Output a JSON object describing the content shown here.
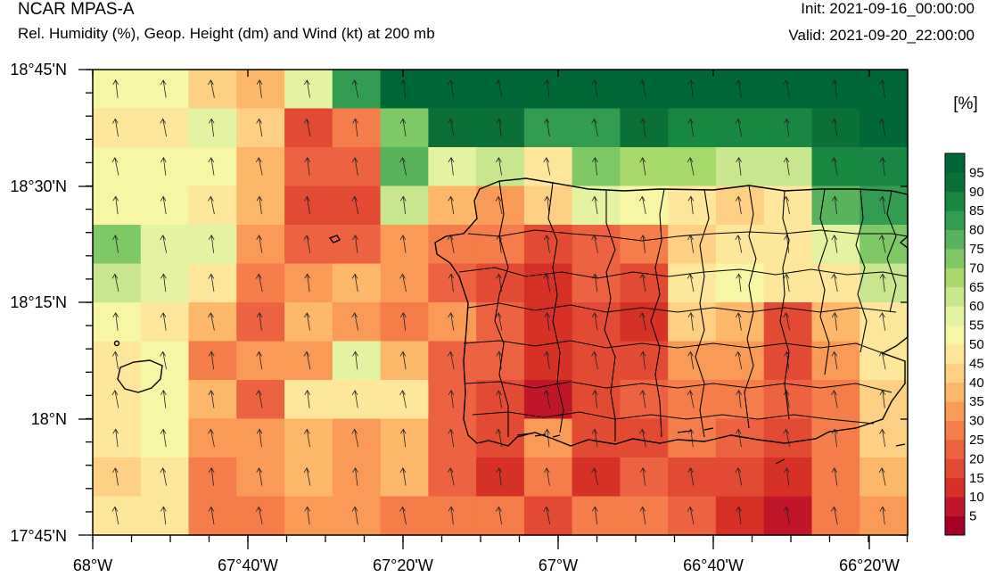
{
  "header": {
    "model": "NCAR MPAS-A",
    "field": "Rel. Humidity (%), Geop. Height (dm) and Wind (kt) at 200 mb",
    "init": "Init: 2021-09-16_00:00:00",
    "valid": "Valid: 2021-09-20_22:00:00"
  },
  "axes": {
    "y_labels": [
      "18°45'N",
      "18°30'N",
      "18°15'N",
      "18°N",
      "17°45'N"
    ],
    "x_labels": [
      "68°W",
      "67°40'W",
      "67°20'W",
      "67°W",
      "66°40'W",
      "66°20'W"
    ]
  },
  "colorbar": {
    "unit": "[%]",
    "levels": [
      "5",
      "10",
      "15",
      "20",
      "25",
      "30",
      "35",
      "40",
      "45",
      "50",
      "55",
      "60",
      "65",
      "70",
      "75",
      "80",
      "85",
      "90",
      "95"
    ],
    "colors": [
      "#a50026",
      "#c1152a",
      "#d73027",
      "#e34a33",
      "#ed6241",
      "#f47d4a",
      "#f99b56",
      "#fcb768",
      "#fdd083",
      "#fee79b",
      "#f7f6a5",
      "#e4f3a1",
      "#c8e68d",
      "#a6d96a",
      "#7fc866",
      "#58b35c",
      "#329d51",
      "#188741",
      "#0a7037",
      "#006837"
    ]
  },
  "map_data": {
    "lon_range": [
      -68.0,
      -66.25
    ],
    "lat_range": [
      17.75,
      18.75
    ],
    "grid_rows_top_to_bottom": [
      [
        10,
        10,
        8,
        7,
        11,
        16,
        19,
        19,
        19,
        19,
        19,
        19,
        19,
        19,
        19,
        19,
        19
      ],
      [
        9,
        9,
        11,
        8,
        3,
        5,
        14,
        18,
        18,
        16,
        16,
        18,
        17,
        17,
        17,
        18,
        19
      ],
      [
        10,
        10,
        10,
        7,
        4,
        4,
        15,
        11,
        12,
        9,
        14,
        13,
        13,
        12,
        12,
        17,
        17
      ],
      [
        10,
        10,
        9,
        7,
        3,
        3,
        12,
        7,
        6,
        8,
        11,
        10,
        9,
        8,
        9,
        15,
        16
      ],
      [
        14,
        11,
        11,
        6,
        4,
        4,
        6,
        5,
        5,
        3,
        4,
        5,
        8,
        9,
        9,
        11,
        14
      ],
      [
        12,
        11,
        9,
        5,
        6,
        7,
        6,
        4,
        3,
        2,
        4,
        3,
        9,
        10,
        9,
        9,
        12
      ],
      [
        10,
        9,
        7,
        4,
        7,
        6,
        5,
        6,
        4,
        2,
        3,
        2,
        8,
        7,
        3,
        7,
        9
      ],
      [
        9,
        10,
        5,
        6,
        6,
        11,
        7,
        4,
        4,
        2,
        3,
        3,
        6,
        6,
        3,
        6,
        9
      ],
      [
        9,
        10,
        7,
        4,
        9,
        9,
        9,
        4,
        3,
        1,
        3,
        4,
        5,
        5,
        4,
        5,
        8
      ],
      [
        9,
        10,
        6,
        6,
        7,
        6,
        7,
        4,
        3,
        6,
        3,
        3,
        5,
        4,
        3,
        5,
        8
      ],
      [
        8,
        9,
        5,
        6,
        7,
        6,
        7,
        4,
        2,
        5,
        2,
        4,
        3,
        3,
        2,
        5,
        7
      ],
      [
        9,
        9,
        5,
        5,
        6,
        6,
        5,
        5,
        5,
        3,
        5,
        5,
        4,
        2,
        1,
        5,
        6
      ]
    ]
  }
}
